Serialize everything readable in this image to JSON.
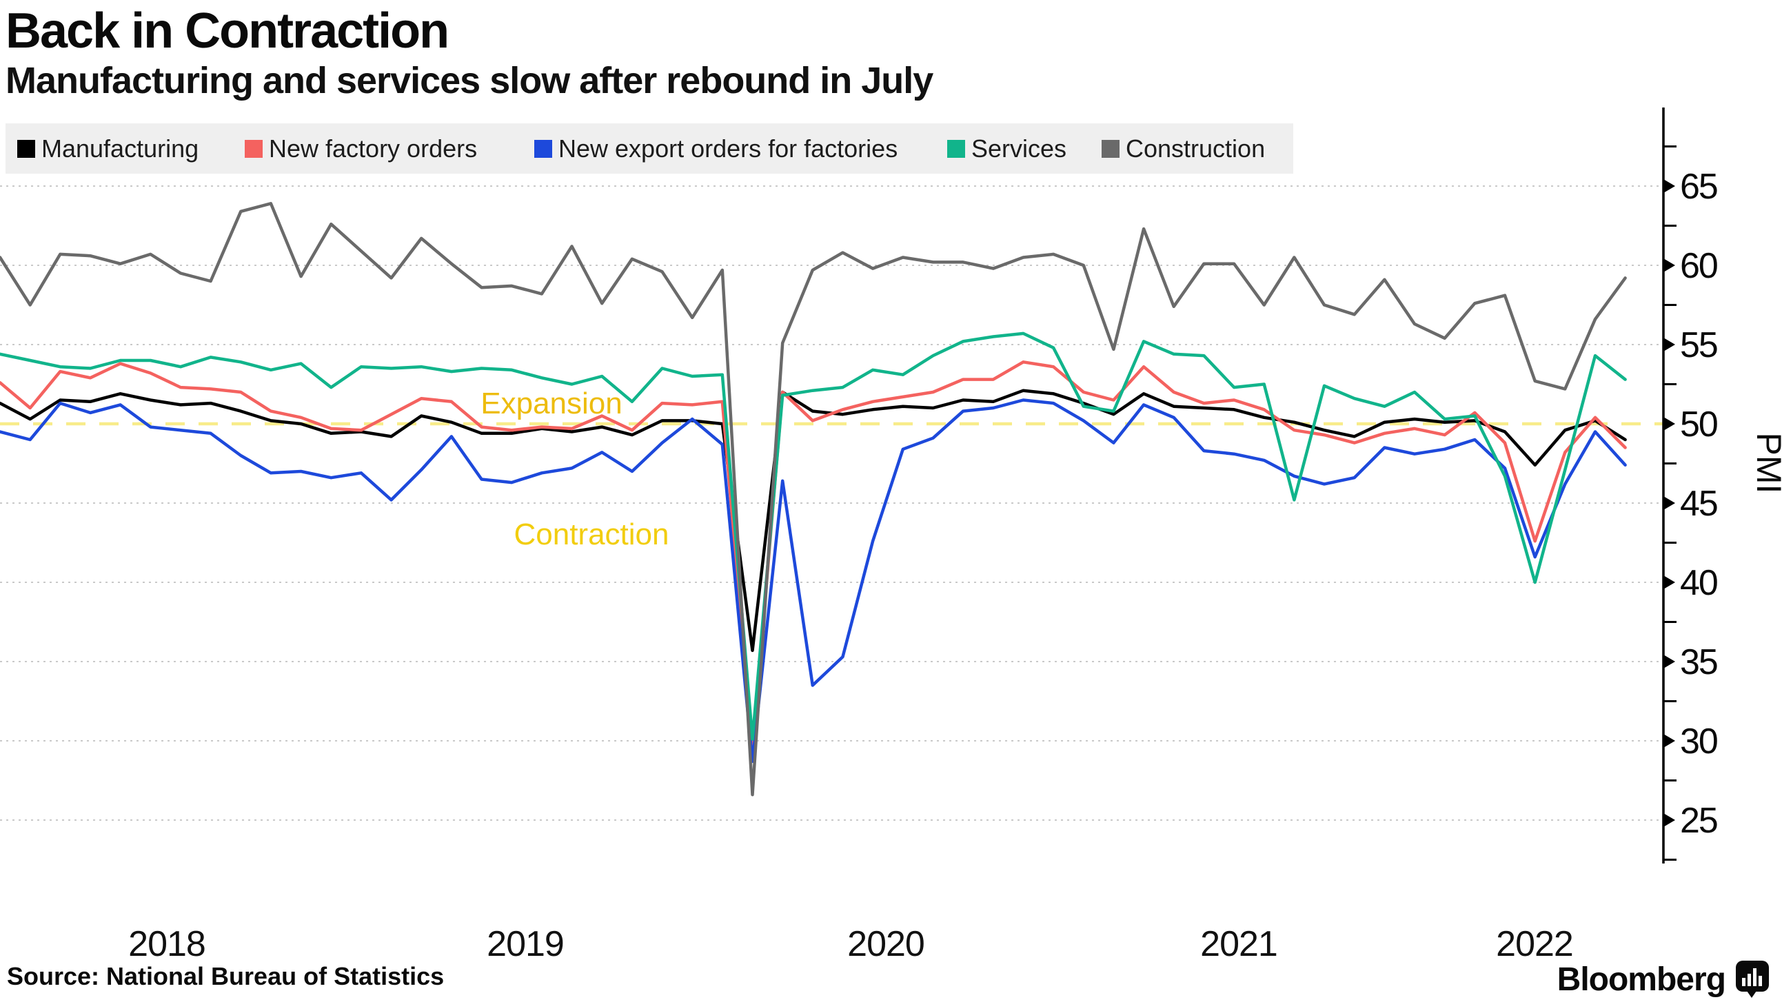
{
  "header": {
    "title": "Back in Contraction",
    "subtitle": "Manufacturing and services slow after rebound in July"
  },
  "legend": [
    {
      "label": "Manufacturing",
      "color": "#000000"
    },
    {
      "label": "New factory orders",
      "color": "#f4625f"
    },
    {
      "label": "New export orders for factories",
      "color": "#1d49db"
    },
    {
      "label": "Services",
      "color": "#11b48b"
    },
    {
      "label": "Construction",
      "color": "#6a6a6a"
    }
  ],
  "chart_data": {
    "type": "line",
    "x_start": "2018-01",
    "x_end": "2022-07",
    "x_points": 55,
    "x_tick_labels": [
      "2018",
      "2019",
      "2020",
      "2021",
      "2022"
    ],
    "ylabel": "PMI",
    "ylim": [
      22,
      68.5
    ],
    "yticks": [
      25,
      30,
      35,
      40,
      45,
      50,
      55,
      60,
      65
    ],
    "grid": "dotted horizontal",
    "legend_position": "top",
    "reference_line": {
      "value": 50,
      "color": "#f8ec8a",
      "label_above": "Expansion",
      "label_below": "Contraction",
      "label_color_above": "#edbc0e",
      "label_color_below": "#f2cd0e"
    },
    "series": [
      {
        "name": "Manufacturing",
        "color": "#000000",
        "values": [
          51.3,
          50.3,
          51.5,
          51.4,
          51.9,
          51.5,
          51.2,
          51.3,
          50.8,
          50.2,
          50.0,
          49.4,
          49.5,
          49.2,
          50.5,
          50.1,
          49.4,
          49.4,
          49.7,
          49.5,
          49.8,
          49.3,
          50.2,
          50.2,
          50.0,
          35.7,
          52.0,
          50.8,
          50.6,
          50.9,
          51.1,
          51.0,
          51.5,
          51.4,
          52.1,
          51.9,
          51.3,
          50.6,
          51.9,
          51.1,
          51.0,
          50.9,
          50.4,
          50.1,
          49.6,
          49.2,
          50.1,
          50.3,
          50.1,
          50.2,
          49.5,
          47.4,
          49.6,
          50.2,
          49.0
        ]
      },
      {
        "name": "New factory orders",
        "color": "#f4625f",
        "values": [
          52.6,
          51.0,
          53.3,
          52.9,
          53.8,
          53.2,
          52.3,
          52.2,
          52.0,
          50.8,
          50.4,
          49.7,
          49.6,
          50.6,
          51.6,
          51.4,
          49.8,
          49.6,
          49.8,
          49.7,
          50.5,
          49.6,
          51.3,
          51.2,
          51.4,
          29.3,
          52.0,
          50.2,
          50.9,
          51.4,
          51.7,
          52.0,
          52.8,
          52.8,
          53.9,
          53.6,
          52.0,
          51.5,
          53.6,
          52.0,
          51.3,
          51.5,
          50.9,
          49.6,
          49.3,
          48.8,
          49.4,
          49.7,
          49.3,
          50.7,
          48.8,
          42.6,
          48.2,
          50.4,
          48.5
        ]
      },
      {
        "name": "New export orders for factories",
        "color": "#1d49db",
        "values": [
          49.5,
          49.0,
          51.3,
          50.7,
          51.2,
          49.8,
          49.6,
          49.4,
          48.0,
          46.9,
          47.0,
          46.6,
          46.9,
          45.2,
          47.1,
          49.2,
          46.5,
          46.3,
          46.9,
          47.2,
          48.2,
          47.0,
          48.8,
          50.3,
          48.7,
          28.7,
          46.4,
          33.5,
          35.3,
          42.6,
          48.4,
          49.1,
          50.8,
          51.0,
          51.5,
          51.3,
          50.2,
          48.8,
          51.2,
          50.4,
          48.3,
          48.1,
          47.7,
          46.7,
          46.2,
          46.6,
          48.5,
          48.1,
          48.4,
          49.0,
          47.2,
          41.6,
          46.2,
          49.5,
          47.4
        ]
      },
      {
        "name": "Services",
        "color": "#11b48b",
        "values": [
          54.4,
          54.0,
          53.6,
          53.5,
          54.0,
          54.0,
          53.6,
          54.2,
          53.9,
          53.4,
          53.8,
          52.3,
          53.6,
          53.5,
          53.6,
          53.3,
          53.5,
          53.4,
          52.9,
          52.5,
          53.0,
          51.4,
          53.5,
          53.0,
          53.1,
          30.1,
          51.8,
          52.1,
          52.3,
          53.4,
          53.1,
          54.3,
          55.2,
          55.5,
          55.7,
          54.8,
          51.1,
          50.8,
          55.2,
          54.4,
          54.3,
          52.3,
          52.5,
          45.2,
          52.4,
          51.6,
          51.1,
          52.0,
          50.3,
          50.5,
          46.7,
          40.0,
          47.1,
          54.3,
          52.8
        ]
      },
      {
        "name": "Construction",
        "color": "#6a6a6a",
        "values": [
          60.5,
          57.5,
          60.7,
          60.6,
          60.1,
          60.7,
          59.5,
          59.0,
          63.4,
          63.9,
          59.3,
          62.6,
          60.9,
          59.2,
          61.7,
          60.1,
          58.6,
          58.7,
          58.2,
          61.2,
          57.6,
          60.4,
          59.6,
          56.7,
          59.7,
          26.6,
          55.1,
          59.7,
          60.8,
          59.8,
          60.5,
          60.2,
          60.2,
          59.8,
          60.5,
          60.7,
          60.0,
          54.7,
          62.3,
          57.4,
          60.1,
          60.1,
          57.5,
          60.5,
          57.5,
          56.9,
          59.1,
          56.3,
          55.4,
          57.6,
          58.1,
          52.7,
          52.2,
          56.6,
          59.2
        ]
      }
    ]
  },
  "footer": {
    "source": "Source: National Bureau of Statistics",
    "brand": "Bloomberg"
  }
}
